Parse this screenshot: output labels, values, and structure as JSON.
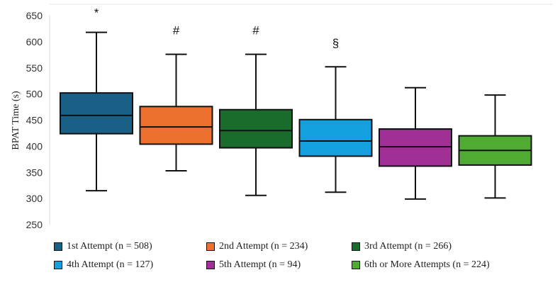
{
  "chart_data": {
    "type": "box",
    "ylabel": "BPAT Time (s)",
    "xlabel": "",
    "ylim": [
      250,
      650
    ],
    "yticks": [
      250,
      300,
      350,
      400,
      450,
      500,
      550,
      600,
      650
    ],
    "grid": false,
    "legend_position": "bottom",
    "series": [
      {
        "name": "1st Attempt (n = 508)",
        "color": "#1a5f86",
        "min": 315,
        "q1": 424,
        "median": 459,
        "q3": 502,
        "max": 618,
        "annotation": "*"
      },
      {
        "name": "2nd Attempt (n = 234)",
        "color": "#ed7030",
        "min": 353,
        "q1": 404,
        "median": 437,
        "q3": 476,
        "max": 576,
        "annotation": "#"
      },
      {
        "name": "3rd Attempt (n = 266)",
        "color": "#1a6c2c",
        "min": 306,
        "q1": 397,
        "median": 430,
        "q3": 470,
        "max": 576,
        "annotation": "#"
      },
      {
        "name": "4th Attempt (n = 127)",
        "color": "#14a0df",
        "min": 312,
        "q1": 381,
        "median": 410,
        "q3": 451,
        "max": 552,
        "annotation": "§"
      },
      {
        "name": "5th Attempt (n = 94)",
        "color": "#a02f96",
        "min": 299,
        "q1": 362,
        "median": 399,
        "q3": 433,
        "max": 512,
        "annotation": ""
      },
      {
        "name": "6th or More Attempts (n = 224)",
        "color": "#50ab33",
        "min": 301,
        "q1": 364,
        "median": 392,
        "q3": 420,
        "max": 498,
        "annotation": ""
      }
    ]
  }
}
